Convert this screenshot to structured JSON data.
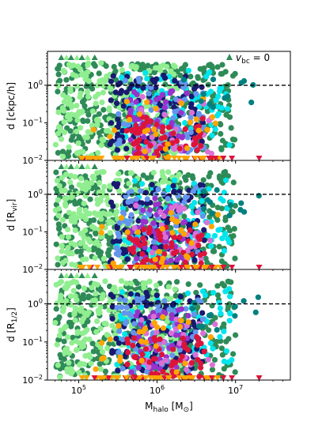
{
  "chart_data": {
    "type": "scatter",
    "figure": {
      "x_label": "M_halo [M_⊙]",
      "x_label_main": "M",
      "x_label_sub": "halo",
      "x_label_unit": "[M",
      "x_label_unit_sub": "⊙",
      "x_label_close": "]",
      "x_scale": "log",
      "x_lim": [
        40000,
        50000000
      ],
      "x_ticks": [
        100000,
        1000000,
        10000000
      ],
      "x_tick_labels": [
        {
          "base": "10",
          "exp": "5"
        },
        {
          "base": "10",
          "exp": "6"
        },
        {
          "base": "10",
          "exp": "7"
        }
      ],
      "legend": {
        "label_main": "v",
        "label_sub": "bc",
        "label_rest": " = 0",
        "marker": "triangle-up",
        "color": "#2e8b57",
        "placement": "top-right"
      },
      "reference_line": {
        "y": 1,
        "style": "dashed",
        "color": "#000000"
      }
    },
    "panels": [
      {
        "id": "top",
        "y_label_main": "d [ckpc/h]",
        "y_label_sub": "",
        "y_label_close": "",
        "y_scale": "log",
        "y_lim": [
          0.01,
          8
        ],
        "y_ticks": [
          0.01,
          0.1,
          1
        ],
        "y_tick_labels": [
          {
            "base": "10",
            "exp": "−2"
          },
          {
            "base": "10",
            "exp": "−1"
          },
          {
            "base": "10",
            "exp": "0"
          }
        ]
      },
      {
        "id": "middle",
        "y_label_main": "d [R",
        "y_label_sub": "vir",
        "y_label_close": "]",
        "y_scale": "log",
        "y_lim": [
          0.01,
          8
        ],
        "y_ticks": [
          0.01,
          0.1,
          1
        ],
        "y_tick_labels": [
          {
            "base": "10",
            "exp": "−2"
          },
          {
            "base": "10",
            "exp": "−1"
          },
          {
            "base": "10",
            "exp": "0"
          }
        ]
      },
      {
        "id": "bottom",
        "y_label_main": "d [R",
        "y_label_sub": "1/2",
        "y_label_close": "]",
        "y_scale": "log",
        "y_lim": [
          0.01,
          8
        ],
        "y_ticks": [
          0.01,
          0.1,
          1
        ],
        "y_tick_labels": [
          {
            "base": "10",
            "exp": "−2"
          },
          {
            "base": "10",
            "exp": "−1"
          },
          {
            "base": "10",
            "exp": "0"
          }
        ]
      }
    ],
    "series": [
      {
        "color": "#2e8b57",
        "x_range": [
          50000,
          10000000
        ],
        "y_range": [
          0.012,
          4
        ],
        "approx_count": 360
      },
      {
        "color": "#90ee90",
        "x_range": [
          50000,
          2000000
        ],
        "y_range": [
          0.012,
          4
        ],
        "approx_count": 260
      },
      {
        "color": "#00e5ee",
        "x_range": [
          300000,
          9000000
        ],
        "y_range": [
          0.02,
          2.5
        ],
        "approx_count": 90
      },
      {
        "color": "#191970",
        "x_range": [
          250000,
          4000000
        ],
        "y_range": [
          0.015,
          2
        ],
        "approx_count": 110
      },
      {
        "color": "#6495ed",
        "x_range": [
          300000,
          4000000
        ],
        "y_range": [
          0.015,
          1.5
        ],
        "approx_count": 70
      },
      {
        "color": "#9932cc",
        "x_range": [
          450000,
          2500000
        ],
        "y_range": [
          0.012,
          0.8
        ],
        "approx_count": 50
      },
      {
        "color": "#da70d6",
        "x_range": [
          500000,
          6000000
        ],
        "y_range": [
          0.015,
          0.5
        ],
        "approx_count": 35
      },
      {
        "color": "#dc143c",
        "x_range": [
          400000,
          4000000
        ],
        "y_range": [
          0.011,
          0.15
        ],
        "approx_count": 55
      },
      {
        "color": "#ffa500",
        "x_range": [
          150000,
          6000000
        ],
        "y_range": [
          0.011,
          0.5
        ],
        "approx_count": 25
      },
      {
        "color": "#008080",
        "x_range": [
          2000000,
          20000000
        ],
        "y_range": [
          0.2,
          1.5
        ],
        "approx_count": 12
      }
    ],
    "upper_limit_markers": {
      "shape": "triangle-up",
      "color_dark": "#2e8b57",
      "color_light": "#90ee90",
      "x": [
        60000,
        70000,
        80000,
        95000,
        110000,
        130000,
        160000
      ],
      "y": 6
    },
    "lower_limit_markers": {
      "shape": "triangle-down",
      "colors": [
        "#ffa500",
        "#dc143c"
      ],
      "x_range": [
        100000,
        20000000
      ],
      "y": 0.0105
    }
  }
}
